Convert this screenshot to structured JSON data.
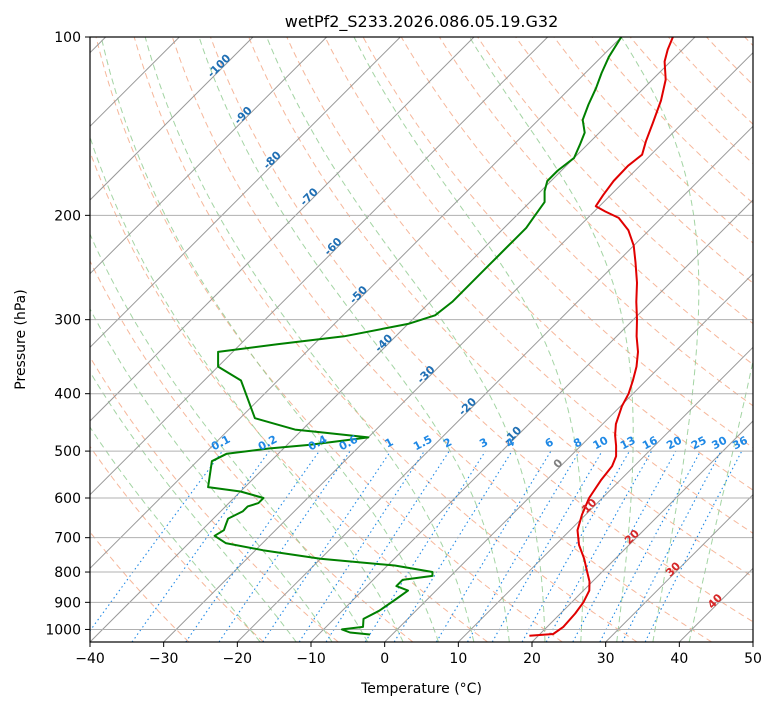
{
  "chart_data": {
    "type": "line",
    "subtype": "skew-T log-P diagram",
    "title": "wetPf2_S233.2026.086.05.19.G32",
    "xlabel": "Temperature (°C)",
    "ylabel": "Pressure (hPa)",
    "xlim": [
      -40,
      50
    ],
    "ylim": [
      1050,
      100
    ],
    "y_scale": "log",
    "x_ticks": [
      -40,
      -30,
      -20,
      -10,
      0,
      10,
      20,
      30,
      40,
      50
    ],
    "y_ticks": [
      100,
      200,
      300,
      400,
      500,
      600,
      700,
      800,
      900,
      1000
    ],
    "grid": true,
    "colors": {
      "temperature": "#e00000",
      "dewpoint": "#008000",
      "isotherm": "#999999",
      "dry_adiabat": "#f4a582",
      "moist_adiabat": "#8cc98c",
      "mixing_ratio": "#1e88e5",
      "isotherm_label": "#1f6fb4",
      "upper_isotherm_label": "#d62728"
    },
    "isotherm_labels": [
      "-100",
      "-90",
      "-80",
      "-70",
      "-60",
      "-50",
      "-40",
      "-30",
      "-20",
      "-10",
      "0",
      "10",
      "20",
      "30",
      "40"
    ],
    "mixing_ratio_labels": [
      "0.1",
      "0.2",
      "0.4",
      "0.6",
      "1",
      "1.5",
      "2",
      "3",
      "4",
      "6",
      "8",
      "10",
      "13",
      "16",
      "20",
      "25",
      "30",
      "36"
    ],
    "series": [
      {
        "role": "temperature",
        "points": [
          [
            1025,
            18.8
          ],
          [
            1018,
            21.8
          ],
          [
            990,
            22.2
          ],
          [
            940,
            22.0
          ],
          [
            900,
            21.6
          ],
          [
            860,
            20.8
          ],
          [
            830,
            19.6
          ],
          [
            800,
            18.0
          ],
          [
            760,
            15.8
          ],
          [
            720,
            13.2
          ],
          [
            680,
            11.0
          ],
          [
            640,
            9.5
          ],
          [
            600,
            8.2
          ],
          [
            560,
            7.4
          ],
          [
            530,
            7.0
          ],
          [
            510,
            6.2
          ],
          [
            490,
            4.8
          ],
          [
            470,
            3.2
          ],
          [
            450,
            1.8
          ],
          [
            420,
            0.2
          ],
          [
            400,
            -0.6
          ],
          [
            380,
            -1.8
          ],
          [
            360,
            -3.2
          ],
          [
            340,
            -5.0
          ],
          [
            320,
            -7.3
          ],
          [
            300,
            -9.5
          ],
          [
            280,
            -12.0
          ],
          [
            260,
            -14.5
          ],
          [
            240,
            -17.5
          ],
          [
            225,
            -20.0
          ],
          [
            212,
            -22.8
          ],
          [
            202,
            -25.8
          ],
          [
            197,
            -28.5
          ],
          [
            193,
            -30.5
          ],
          [
            185,
            -31.0
          ],
          [
            175,
            -31.5
          ],
          [
            165,
            -31.6
          ],
          [
            158,
            -31.2
          ],
          [
            150,
            -32.5
          ],
          [
            140,
            -34.0
          ],
          [
            128,
            -36.0
          ],
          [
            118,
            -38.2
          ],
          [
            110,
            -40.8
          ],
          [
            105,
            -42.0
          ],
          [
            100,
            -43.0
          ]
        ]
      },
      {
        "role": "dewpoint",
        "points": [
          [
            1020,
            -3.0
          ],
          [
            1012,
            -6.0
          ],
          [
            1000,
            -7.5
          ],
          [
            990,
            -5.0
          ],
          [
            960,
            -6.0
          ],
          [
            930,
            -5.0
          ],
          [
            890,
            -4.3
          ],
          [
            860,
            -3.8
          ],
          [
            845,
            -6.0
          ],
          [
            825,
            -6.0
          ],
          [
            812,
            -2.5
          ],
          [
            800,
            -3.0
          ],
          [
            780,
            -9.0
          ],
          [
            760,
            -20.0
          ],
          [
            735,
            -29.0
          ],
          [
            715,
            -35.0
          ],
          [
            695,
            -37.5
          ],
          [
            680,
            -37.0
          ],
          [
            665,
            -37.5
          ],
          [
            650,
            -38.0
          ],
          [
            632,
            -37.0
          ],
          [
            620,
            -37.0
          ],
          [
            612,
            -36.0
          ],
          [
            600,
            -36.0
          ],
          [
            585,
            -40.0
          ],
          [
            575,
            -45.0
          ],
          [
            520,
            -48.0
          ],
          [
            505,
            -47.0
          ],
          [
            495,
            -42.0
          ],
          [
            488,
            -37.0
          ],
          [
            480,
            -33.0
          ],
          [
            474,
            -30.0
          ],
          [
            470,
            -33.0
          ],
          [
            465,
            -37.0
          ],
          [
            460,
            -41.0
          ],
          [
            440,
            -48.0
          ],
          [
            380,
            -55.0
          ],
          [
            360,
            -60.0
          ],
          [
            340,
            -62.0
          ],
          [
            330,
            -55.0
          ],
          [
            320,
            -47.0
          ],
          [
            305,
            -40.0
          ],
          [
            295,
            -37.5
          ],
          [
            280,
            -37.0
          ],
          [
            262,
            -37.0
          ],
          [
            245,
            -37.0
          ],
          [
            232,
            -37.0
          ],
          [
            220,
            -37.0
          ],
          [
            210,
            -37.0
          ],
          [
            200,
            -37.5
          ],
          [
            190,
            -38.0
          ],
          [
            182,
            -39.5
          ],
          [
            175,
            -40.5
          ],
          [
            168,
            -40.5
          ],
          [
            160,
            -40.0
          ],
          [
            152,
            -41.0
          ],
          [
            145,
            -42.0
          ],
          [
            138,
            -44.0
          ],
          [
            130,
            -45.3
          ],
          [
            122,
            -46.5
          ],
          [
            115,
            -47.8
          ],
          [
            108,
            -49.0
          ],
          [
            100,
            -50.0
          ]
        ]
      }
    ]
  }
}
